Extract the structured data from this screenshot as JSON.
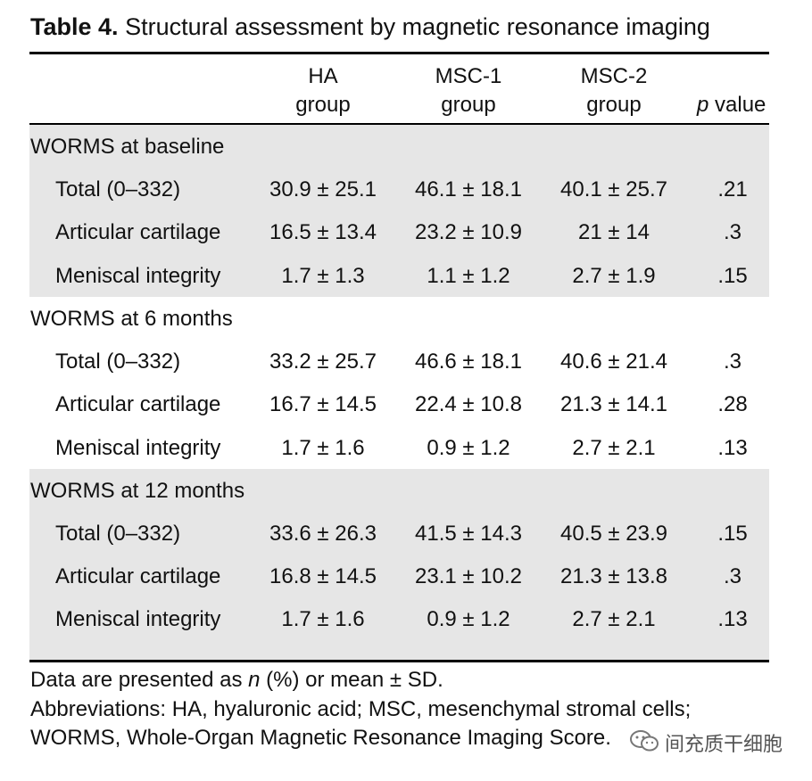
{
  "caption": {
    "label": "Table 4.",
    "text": "Structural assessment by magnetic resonance imaging"
  },
  "headers": {
    "ha": [
      "HA",
      "group"
    ],
    "msc1": [
      "MSC-1",
      "group"
    ],
    "msc2": [
      "MSC-2",
      "group"
    ],
    "p_italic": "p",
    "p_rest": " value"
  },
  "sections": [
    {
      "title": "WORMS at baseline",
      "rows": [
        {
          "label": "Total (0–332)",
          "ha": "30.9 ± 25.1",
          "msc1": "46.1 ± 18.1",
          "msc2": "40.1 ± 25.7",
          "p": ".21"
        },
        {
          "label": "Articular cartilage",
          "ha": "16.5 ± 13.4",
          "msc1": "23.2 ± 10.9",
          "msc2": "21 ± 14",
          "p": ".3"
        },
        {
          "label": "Meniscal integrity",
          "ha": "1.7 ± 1.3",
          "msc1": "1.1 ± 1.2",
          "msc2": "2.7 ± 1.9",
          "p": ".15"
        }
      ]
    },
    {
      "title": "WORMS at 6 months",
      "rows": [
        {
          "label": "Total (0–332)",
          "ha": "33.2 ± 25.7",
          "msc1": "46.6 ± 18.1",
          "msc2": "40.6 ± 21.4",
          "p": ".3"
        },
        {
          "label": "Articular cartilage",
          "ha": "16.7 ± 14.5",
          "msc1": "22.4 ± 10.8",
          "msc2": "21.3 ± 14.1",
          "p": ".28"
        },
        {
          "label": "Meniscal integrity",
          "ha": "1.7 ± 1.6",
          "msc1": "0.9 ± 1.2",
          "msc2": "2.7 ± 2.1",
          "p": ".13"
        }
      ]
    },
    {
      "title": "WORMS at 12 months",
      "rows": [
        {
          "label": "Total (0–332)",
          "ha": "33.6 ± 26.3",
          "msc1": "41.5 ± 14.3",
          "msc2": "40.5 ± 23.9",
          "p": ".15"
        },
        {
          "label": "Articular cartilage",
          "ha": "16.8 ± 14.5",
          "msc1": "23.1 ± 10.2",
          "msc2": "21.3 ± 13.8",
          "p": ".3"
        },
        {
          "label": "Meniscal integrity",
          "ha": "1.7 ± 1.6",
          "msc1": "0.9 ± 1.2",
          "msc2": "2.7 ± 2.1",
          "p": ".13"
        }
      ]
    }
  ],
  "footnotes": {
    "line1_pre": "Data are presented as ",
    "line1_italic": "n",
    "line1_post": " (%) or mean ± SD.",
    "line2": "Abbreviations: HA, hyaluronic acid; MSC, mesenchymal stromal cells;",
    "line3": "WORMS, Whole-Organ Magnetic Resonance Imaging Score."
  },
  "watermark": {
    "icon": "wechat-icon",
    "text": "间充质干细胞"
  }
}
